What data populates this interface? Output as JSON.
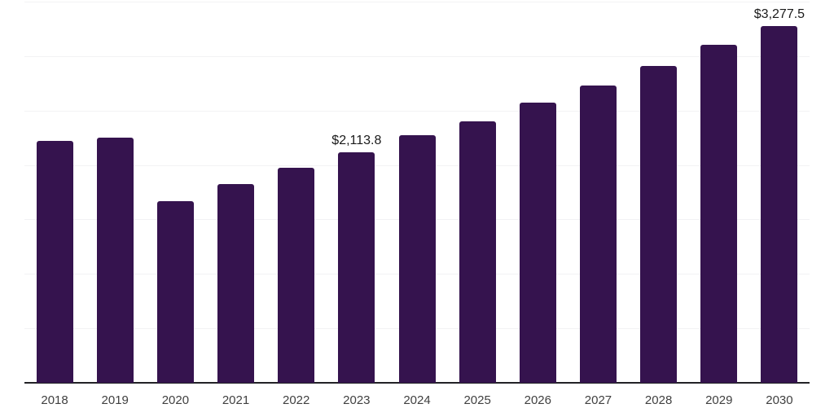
{
  "chart_data": {
    "type": "bar",
    "title": "",
    "xlabel": "",
    "ylabel": "",
    "categories": [
      "2018",
      "2019",
      "2020",
      "2021",
      "2022",
      "2023",
      "2024",
      "2025",
      "2026",
      "2027",
      "2028",
      "2029",
      "2030"
    ],
    "values": [
      2224,
      2249,
      1670,
      1825,
      1974,
      2113.8,
      2274,
      2404,
      2575,
      2728,
      2910,
      3106,
      3277.5
    ],
    "data_labels": [
      {
        "category": "2023",
        "text": "$2,113.8"
      },
      {
        "category": "2030",
        "text": "$3,277.5"
      }
    ],
    "ylim": [
      0,
      3500
    ],
    "gridline_step": 500,
    "grid": true,
    "legend_position": "none",
    "y_axis_tick_labels_visible": false,
    "colors": {
      "bar": "#35134e",
      "axis_line": "#222226",
      "gridline": "#f2f2f4",
      "tick_label": "#404040",
      "data_label": "#1a1a1a",
      "background": "#ffffff"
    }
  }
}
